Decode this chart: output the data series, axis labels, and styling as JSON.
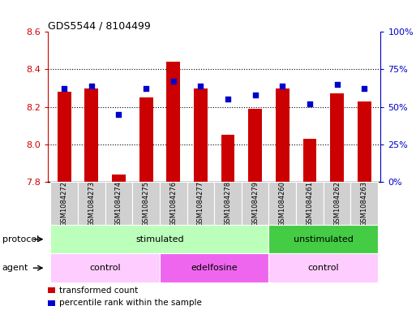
{
  "title": "GDS5544 / 8104499",
  "samples": [
    "GSM1084272",
    "GSM1084273",
    "GSM1084274",
    "GSM1084275",
    "GSM1084276",
    "GSM1084277",
    "GSM1084278",
    "GSM1084279",
    "GSM1084260",
    "GSM1084261",
    "GSM1084262",
    "GSM1084263"
  ],
  "transformed_count": [
    8.28,
    8.3,
    7.84,
    8.25,
    8.44,
    8.3,
    8.05,
    8.19,
    8.3,
    8.03,
    8.27,
    8.23
  ],
  "percentile_rank": [
    62,
    64,
    45,
    62,
    67,
    64,
    55,
    58,
    64,
    52,
    65,
    62
  ],
  "ylim_left": [
    7.8,
    8.6
  ],
  "ylim_right": [
    0,
    100
  ],
  "yticks_left": [
    7.8,
    8.0,
    8.2,
    8.4,
    8.6
  ],
  "yticks_right": [
    0,
    25,
    50,
    75,
    100
  ],
  "ytick_right_labels": [
    "0%",
    "25%",
    "50%",
    "75%",
    "100%"
  ],
  "bar_color": "#cc0000",
  "dot_color": "#0000cc",
  "bar_width": 0.5,
  "bar_bottom": 7.8,
  "protocol_groups": [
    {
      "label": "stimulated",
      "start": 0,
      "end": 8,
      "color": "#bbffbb"
    },
    {
      "label": "unstimulated",
      "start": 8,
      "end": 12,
      "color": "#44cc44"
    }
  ],
  "agent_groups": [
    {
      "label": "control",
      "start": 0,
      "end": 4,
      "color": "#ffccff"
    },
    {
      "label": "edelfosine",
      "start": 4,
      "end": 8,
      "color": "#ee66ee"
    },
    {
      "label": "control",
      "start": 8,
      "end": 12,
      "color": "#ffccff"
    }
  ],
  "legend_items": [
    {
      "label": "transformed count",
      "color": "#cc0000"
    },
    {
      "label": "percentile rank within the sample",
      "color": "#0000cc"
    }
  ],
  "background_color": "#ffffff",
  "left_axis_color": "#cc0000",
  "right_axis_color": "#0000cc",
  "sample_bg_color": "#d0d0d0",
  "protocol_label": "protocol",
  "agent_label": "agent",
  "grid_yticks": [
    8.0,
    8.2,
    8.4
  ]
}
